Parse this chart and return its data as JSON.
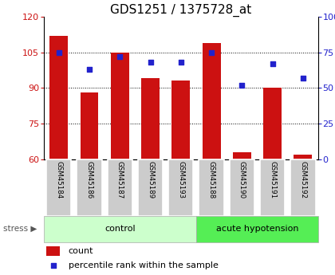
{
  "title": "GDS1251 / 1375728_at",
  "samples": [
    "GSM45184",
    "GSM45186",
    "GSM45187",
    "GSM45189",
    "GSM45193",
    "GSM45188",
    "GSM45190",
    "GSM45191",
    "GSM45192"
  ],
  "count_values": [
    112,
    88,
    105,
    94,
    93,
    109,
    63,
    90,
    62
  ],
  "percentile_values": [
    75,
    63,
    72,
    68,
    68,
    75,
    52,
    67,
    57
  ],
  "ylim_left": [
    60,
    120
  ],
  "ylim_right": [
    0,
    100
  ],
  "yticks_left": [
    60,
    75,
    90,
    105,
    120
  ],
  "yticks_right": [
    0,
    25,
    50,
    75,
    100
  ],
  "bar_color": "#cc1111",
  "dot_color": "#2222cc",
  "n_control": 5,
  "n_acute": 4,
  "control_label": "control",
  "acute_label": "acute hypotension",
  "stress_label": "stress",
  "group_bg_control": "#ccffcc",
  "group_bg_acute": "#55ee55",
  "tick_label_bg": "#cccccc",
  "legend_count_label": "count",
  "legend_pct_label": "percentile rank within the sample",
  "title_fontsize": 11,
  "axis_fontsize": 8,
  "label_fontsize": 8
}
